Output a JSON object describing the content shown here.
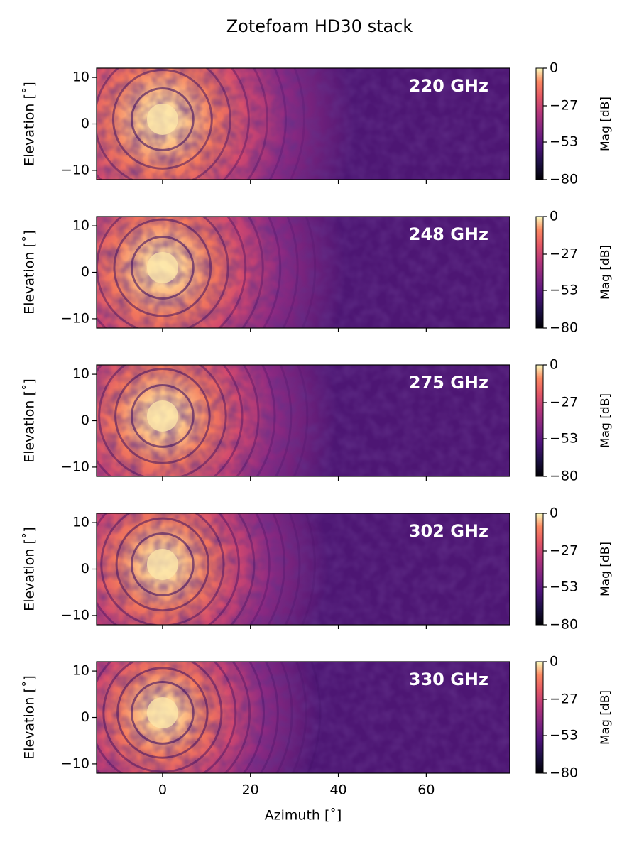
{
  "chart_data": [
    {
      "type": "heatmap",
      "title": "Zotefoam HD30 stack",
      "label": "220 GHz",
      "ylabel": "Elevation [˚]",
      "xlim": [
        -15,
        79
      ],
      "xticks": [
        0,
        20,
        40,
        60
      ],
      "ylim": [
        -12,
        12
      ],
      "yticks": [
        10,
        0,
        {
          "value": -10,
          "label": "−10"
        }
      ],
      "colormap": "magma",
      "clabel": "Mag [dB]",
      "clim": [
        -80,
        0
      ],
      "cticks": [
        0,
        {
          "value": -27,
          "label": "−27"
        },
        {
          "value": -53,
          "label": "−53"
        },
        {
          "value": -80,
          "label": "−80"
        }
      ]
    },
    {
      "type": "heatmap",
      "label": "248 GHz",
      "ylabel": "Elevation [˚]",
      "xlim": [
        -15,
        79
      ],
      "xticks": [
        0,
        20,
        40,
        60
      ],
      "ylim": [
        -12,
        12
      ],
      "yticks": [
        10,
        0,
        {
          "value": -10,
          "label": "−10"
        }
      ],
      "colormap": "magma",
      "clabel": "Mag [dB]",
      "clim": [
        -80,
        0
      ],
      "cticks": [
        0,
        {
          "value": -27,
          "label": "−27"
        },
        {
          "value": -53,
          "label": "−53"
        },
        {
          "value": -80,
          "label": "−80"
        }
      ]
    },
    {
      "type": "heatmap",
      "label": "275 GHz",
      "ylabel": "Elevation [˚]",
      "xlim": [
        -15,
        79
      ],
      "xticks": [
        0,
        20,
        40,
        60
      ],
      "ylim": [
        -12,
        12
      ],
      "yticks": [
        10,
        0,
        {
          "value": -10,
          "label": "−10"
        }
      ],
      "colormap": "magma",
      "clabel": "Mag [dB]",
      "clim": [
        -80,
        0
      ],
      "cticks": [
        0,
        {
          "value": -27,
          "label": "−27"
        },
        {
          "value": -53,
          "label": "−53"
        },
        {
          "value": -80,
          "label": "−80"
        }
      ]
    },
    {
      "type": "heatmap",
      "label": "302 GHz",
      "ylabel": "Elevation [˚]",
      "xlim": [
        -15,
        79
      ],
      "xticks": [
        0,
        20,
        40,
        60
      ],
      "ylim": [
        -12,
        12
      ],
      "yticks": [
        10,
        0,
        {
          "value": -10,
          "label": "−10"
        }
      ],
      "colormap": "magma",
      "clabel": "Mag [dB]",
      "clim": [
        -80,
        0
      ],
      "cticks": [
        0,
        {
          "value": -27,
          "label": "−27"
        },
        {
          "value": -53,
          "label": "−53"
        },
        {
          "value": -80,
          "label": "−80"
        }
      ]
    },
    {
      "type": "heatmap",
      "label": "330 GHz",
      "ylabel": "Elevation [˚]",
      "xlabel": "Azimuth [˚]",
      "xlim": [
        -15,
        79
      ],
      "xticks": [
        0,
        20,
        40,
        60
      ],
      "ylim": [
        -12,
        12
      ],
      "yticks": [
        10,
        0,
        {
          "value": -10,
          "label": "−10"
        }
      ],
      "colormap": "magma",
      "clabel": "Mag [dB]",
      "clim": [
        -80,
        0
      ],
      "cticks": [
        0,
        {
          "value": -27,
          "label": "−27"
        },
        {
          "value": -53,
          "label": "−53"
        },
        {
          "value": -80,
          "label": "−80"
        }
      ]
    }
  ]
}
